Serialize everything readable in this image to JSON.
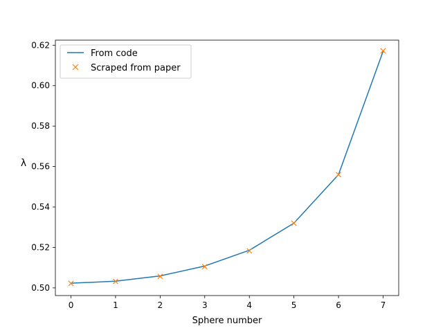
{
  "chart_data": {
    "type": "line",
    "title": "",
    "xlabel": "Sphere number",
    "ylabel": "λ",
    "xlim": [
      -0.35,
      7.35
    ],
    "ylim": [
      0.4962,
      0.6225
    ],
    "xticks": [
      0,
      1,
      2,
      3,
      4,
      5,
      6,
      7
    ],
    "yticks": [
      0.5,
      0.52,
      0.54,
      0.56,
      0.58,
      0.6,
      0.62
    ],
    "ytick_labels": [
      "0.50",
      "0.52",
      "0.54",
      "0.56",
      "0.58",
      "0.60",
      "0.62"
    ],
    "grid": false,
    "legend_position": "top-left",
    "series": [
      {
        "name": "From code",
        "style": "line",
        "color": "#1f77b4",
        "x": [
          0,
          1,
          2,
          3,
          4,
          5,
          6,
          7
        ],
        "values": [
          0.5023,
          0.5033,
          0.5059,
          0.5108,
          0.5186,
          0.532,
          0.556,
          0.617
        ]
      },
      {
        "name": "Scraped from paper",
        "style": "x-marker",
        "color": "#ff7f0e",
        "x": [
          0,
          1,
          2,
          3,
          4,
          5,
          6,
          7
        ],
        "values": [
          0.5022,
          0.5032,
          0.5057,
          0.5105,
          0.5183,
          0.532,
          0.556,
          0.6172
        ]
      }
    ]
  }
}
